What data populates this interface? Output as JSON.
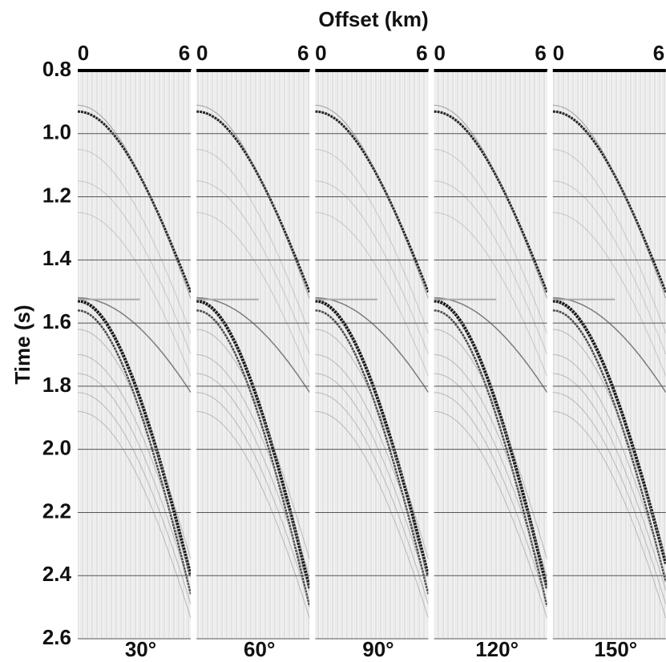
{
  "chart_data": {
    "type": "seismic",
    "title": "Offset (km)",
    "y_label": "Time (s)",
    "xlim": [
      0,
      6
    ],
    "xticks": [
      0,
      6
    ],
    "ylim": [
      2.6,
      0.8
    ],
    "yticks": [
      {
        "value": 0.8,
        "label": "0.8"
      },
      {
        "value": 1.0,
        "label": "1.0"
      },
      {
        "value": 1.2,
        "label": "1.2"
      },
      {
        "value": 1.4,
        "label": "1.4"
      },
      {
        "value": 1.6,
        "label": "1.6"
      },
      {
        "value": 1.8,
        "label": "1.8"
      },
      {
        "value": 2.0,
        "label": "2.0"
      },
      {
        "value": 2.2,
        "label": "2.2"
      },
      {
        "value": 2.4,
        "label": "2.4"
      },
      {
        "value": 2.6,
        "label": "2.6"
      }
    ],
    "y_inverted": true,
    "grid": true,
    "panels": [
      "30°",
      "60°",
      "90°",
      "120°",
      "150°"
    ]
  }
}
